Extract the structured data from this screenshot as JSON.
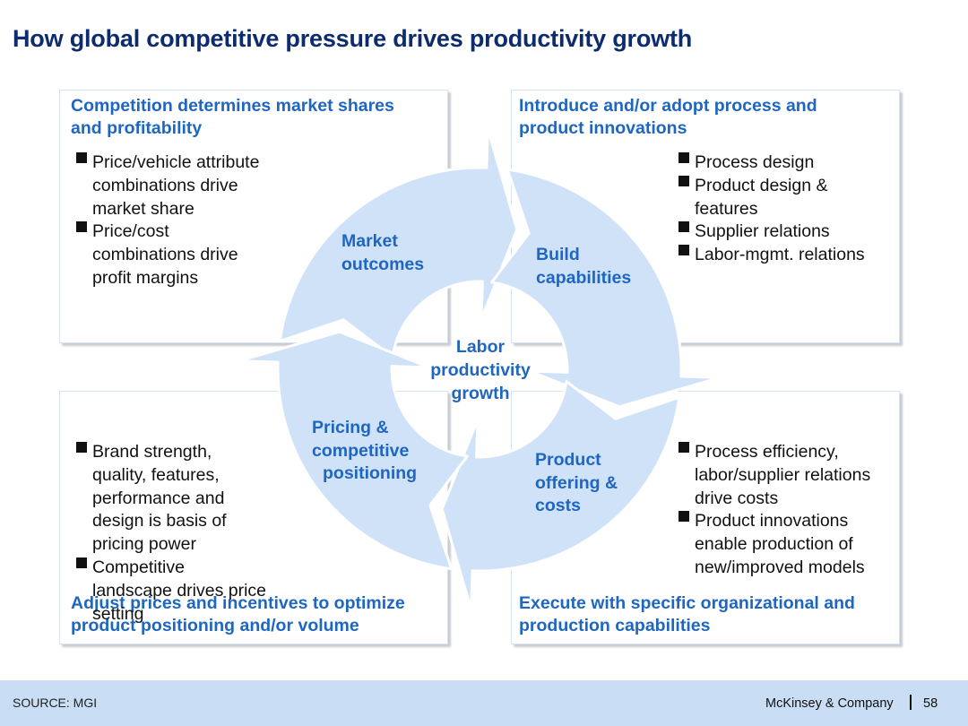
{
  "title": "How global competitive pressure drives productivity growth",
  "boxes": {
    "top_left": {
      "heading_lines": [
        "Competition determines market shares",
        "and profitability"
      ],
      "bullets": [
        {
          "lines": [
            "Price/vehicle attribute",
            "combinations drive",
            "market share"
          ]
        },
        {
          "lines": [
            "Price/cost",
            "combinations drive",
            "profit margins"
          ]
        }
      ]
    },
    "top_right": {
      "heading_lines": [
        "Introduce and/or adopt process and",
        "product innovations"
      ],
      "bullets": [
        {
          "lines": [
            "Process design"
          ]
        },
        {
          "lines": [
            "Product design &",
            "features"
          ]
        },
        {
          "lines": [
            "Supplier relations"
          ]
        },
        {
          "lines": [
            "Labor-mgmt. relations"
          ]
        }
      ]
    },
    "bottom_left": {
      "heading_lines": [
        "Adjust prices and incentives to optimize",
        "product positioning and/or volume"
      ],
      "bullets": [
        {
          "lines": [
            "Brand strength,",
            "quality, features,",
            "performance and",
            "design is basis of",
            "pricing power"
          ]
        },
        {
          "lines": [
            "Competitive",
            "landscape drives price",
            "setting"
          ]
        }
      ]
    },
    "bottom_right": {
      "heading_lines": [
        "Execute with specific organizational and",
        "production capabilities"
      ],
      "bullets": [
        {
          "lines": [
            "Process efficiency,",
            "labor/supplier relations",
            "drive costs"
          ]
        },
        {
          "lines": [
            "Product innovations",
            "enable production of",
            "new/improved models"
          ]
        }
      ]
    }
  },
  "cycle": {
    "center_lines": [
      "Labor",
      "productivity",
      "growth"
    ],
    "stages": {
      "market_outcomes": [
        "Market",
        "outcomes"
      ],
      "build_capabilities": [
        "Build",
        "capabilities"
      ],
      "product_offering": [
        "Product",
        "offering &",
        "costs"
      ],
      "pricing_positioning": [
        "Pricing &",
        "competitive",
        "positioning"
      ]
    }
  },
  "footer": {
    "source": "SOURCE: MGI",
    "company": "McKinsey & Company",
    "page_number": "58"
  },
  "colors": {
    "title": "#0c2c6e",
    "heading_blue": "#1f66c1",
    "arrow_fill": "#cfe2f7",
    "footer_bg": "#c9def4"
  }
}
